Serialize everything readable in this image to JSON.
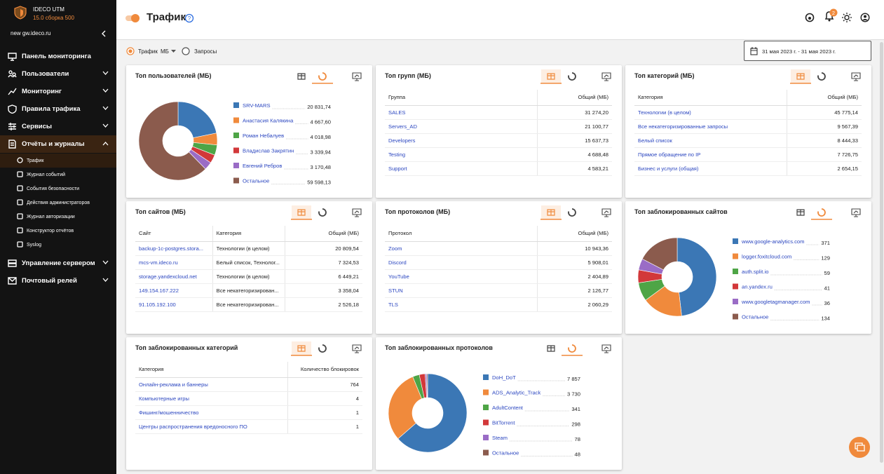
{
  "sidebar": {
    "product": "IDECO UTM",
    "version": "15.0 сборка 500",
    "host": "new gw.ideco.ru",
    "menu_top": [
      "Панель мониторинга",
      "Пользователи",
      "Мониторинг",
      "Правила трафика",
      "Сервисы",
      "Отчёты и журналы"
    ],
    "reports_submenu": [
      "Трафик",
      "Журнал событий",
      "События безопасности",
      "Действия администраторов",
      "Журнал авторизации",
      "Конструктор отчётов",
      "Syslog"
    ],
    "menu_bottom": [
      "Управление сервером",
      "Почтовый релей"
    ]
  },
  "header": {
    "title": "Трафик",
    "notifications": 2
  },
  "filters": {
    "traffic": "Трафик",
    "unit": "МБ",
    "requests": "Запросы",
    "date_range": "31 мая 2023 г. - 31 мая 2023 г."
  },
  "widgets": [
    {
      "title": "Топ пользователей (МБ)",
      "chart_data": {
        "type": "pie",
        "categories": [
          "SRV-MARS",
          "Анастасия Калякина",
          "Роман Небалуев",
          "Владислав Закрятин",
          "Евгений Ребров",
          "Остальное"
        ],
        "values": [
          20831.74,
          4667.6,
          4018.98,
          3339.94,
          3170.48,
          59598.13
        ],
        "value_labels": [
          "20 831,74",
          "4 667,60",
          "4 018,98",
          "3 339,94",
          "3 170,48",
          "59 598,13"
        ],
        "colors": [
          "#3b77b5",
          "#f08a3c",
          "#4ea546",
          "#d2383a",
          "#9a6cc6",
          "#8b5b4d"
        ]
      }
    },
    {
      "title": "Топ групп (МБ)",
      "table": {
        "columns": [
          "Группа",
          "Общий (МБ)"
        ],
        "rows": [
          [
            "SALES",
            "31 274,20"
          ],
          [
            "Servers_AD",
            "21 100,77"
          ],
          [
            "Developers",
            "15 637,73"
          ],
          [
            "Testing",
            "4 688,48"
          ],
          [
            "Support",
            "4 583,21"
          ]
        ]
      }
    },
    {
      "title": "Топ категорий (МБ)",
      "table": {
        "columns": [
          "Категория",
          "Общий (МБ)"
        ],
        "rows": [
          [
            "Технологии (в целом)",
            "45 775,14"
          ],
          [
            "Все некатегоризированные запросы",
            "9 567,39"
          ],
          [
            "Белый список",
            "8 444,33"
          ],
          [
            "Прямое обращение по IP",
            "7 726,75"
          ],
          [
            "Бизнес и услуги (общая)",
            "2 654,15"
          ]
        ]
      }
    },
    {
      "title": "Топ сайтов (МБ)",
      "table": {
        "columns": [
          "Сайт",
          "Категория",
          "Общий (МБ)"
        ],
        "rows": [
          [
            "backup-1c-postgres.stora...",
            "Технологии (в целом)",
            "20 809,54"
          ],
          [
            "mcs-vm.ideco.ru",
            "Белый список, Технолог...",
            "7 324,53"
          ],
          [
            "storage.yandexcloud.net",
            "Технологии (в целом)",
            "6 449,21"
          ],
          [
            "149.154.167.222",
            "Все некатегоризирован...",
            "3 358,04"
          ],
          [
            "91.105.192.100",
            "Все некатегоризирован...",
            "2 526,18"
          ]
        ]
      }
    },
    {
      "title": "Топ протоколов (МБ)",
      "table": {
        "columns": [
          "Протокол",
          "Общий (МБ)"
        ],
        "rows": [
          [
            "Zoom",
            "10 943,36"
          ],
          [
            "Discord",
            "5 908,01"
          ],
          [
            "YouTube",
            "2 404,89"
          ],
          [
            "STUN",
            "2 126,77"
          ],
          [
            "TLS",
            "2 060,29"
          ]
        ]
      }
    },
    {
      "title": "Топ заблокированных сайтов",
      "chart_data": {
        "type": "pie",
        "categories": [
          "www.google-analytics.com",
          "logger.foxitcloud.com",
          "auth.split.io",
          "an.yandex.ru",
          "www.googletagmanager.com",
          "Остальное"
        ],
        "values": [
          371,
          129,
          59,
          41,
          36,
          134
        ],
        "colors": [
          "#3b77b5",
          "#f08a3c",
          "#4ea546",
          "#d2383a",
          "#9a6cc6",
          "#8b5b4d"
        ]
      }
    },
    {
      "title": "Топ заблокированных категорий",
      "table": {
        "columns": [
          "Категория",
          "Количество блокировок"
        ],
        "rows": [
          [
            "Онлайн-реклама и баннеры",
            "764"
          ],
          [
            "Компьютерные игры",
            "4"
          ],
          [
            "Фишинг/мошенничество",
            "1"
          ],
          [
            "Центры распространения вредоносного ПО",
            "1"
          ]
        ]
      }
    },
    {
      "title": "Топ заблокированных протоколов",
      "chart_data": {
        "type": "pie",
        "categories": [
          "DoH_DoT",
          "ADS_Analytic_Track",
          "AdultContent",
          "BitTorrent",
          "Steam",
          "Остальное"
        ],
        "values": [
          7857,
          3730,
          341,
          298,
          78,
          48
        ],
        "value_labels": [
          "7 857",
          "3 730",
          "341",
          "298",
          "78",
          "48"
        ],
        "colors": [
          "#3b77b5",
          "#f08a3c",
          "#4ea546",
          "#d2383a",
          "#9a6cc6",
          "#8b5b4d"
        ]
      }
    }
  ]
}
